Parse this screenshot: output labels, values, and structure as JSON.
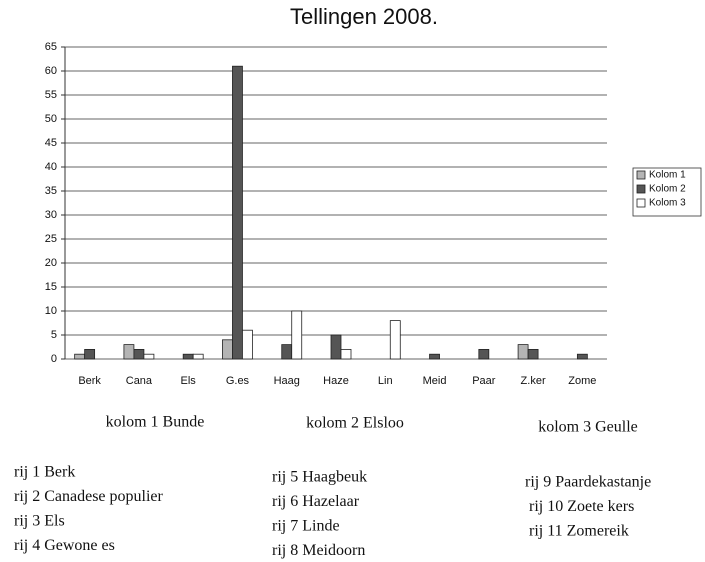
{
  "chart_data": {
    "type": "bar",
    "title": "Tellingen 2008.",
    "categories": [
      "Berk",
      "Cana",
      "Els",
      "G.es",
      "Haag",
      "Haze",
      "Lin",
      "Meid",
      "Paar",
      "Z.ker",
      "Zome"
    ],
    "series": [
      {
        "name": "Kolom 1",
        "color": "#b4b4b4",
        "values": [
          1,
          3,
          0,
          4,
          0,
          0,
          0,
          0,
          0,
          3,
          0
        ]
      },
      {
        "name": "Kolom 2",
        "color": "#555555",
        "values": [
          2,
          2,
          1,
          61,
          3,
          5,
          0,
          1,
          2,
          2,
          1
        ]
      },
      {
        "name": "Kolom 3",
        "color": "#ffffff",
        "values": [
          0,
          1,
          1,
          6,
          10,
          2,
          8,
          0,
          0,
          0,
          0
        ]
      }
    ],
    "ylim": [
      0,
      65
    ],
    "yticks": [
      0,
      5,
      10,
      15,
      20,
      25,
      30,
      35,
      40,
      45,
      50,
      55,
      60,
      65
    ],
    "grid": true,
    "legend": "right"
  },
  "kolom_labels": [
    "kolom 1 Bunde",
    "kolom 2 Elsloo",
    "kolom 3 Geulle"
  ],
  "rij_columns": [
    [
      "rij 1 Berk",
      "rij 2 Canadese populier",
      "rij 3 Els",
      "rij 4 Gewone es"
    ],
    [
      "rij 5 Haagbeuk",
      "rij 6 Hazelaar",
      "rij 7 Linde",
      "rij 8 Meidoorn"
    ],
    [
      "rij 9 Paardekastanje",
      "rij 10 Zoete kers",
      "rij 11 Zomereik"
    ]
  ]
}
